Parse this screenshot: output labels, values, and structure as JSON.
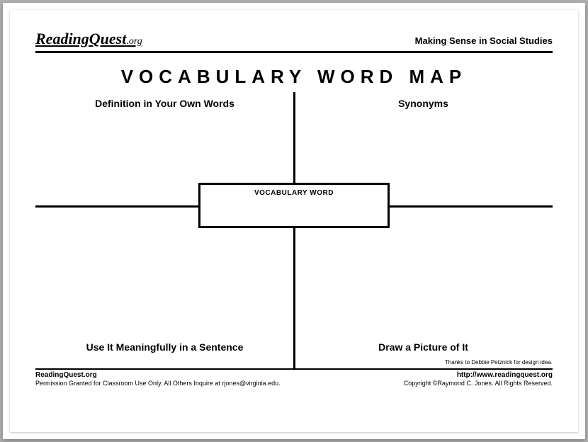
{
  "header": {
    "brand_main": "ReadingQuest",
    "brand_tld": ".org",
    "tagline": "Making Sense in Social Studies"
  },
  "title": "VOCABULARY WORD MAP",
  "diagram": {
    "center_label": "VOCABULARY WORD",
    "top_left": "Definition in Your Own Words",
    "top_right": "Synonyms",
    "bottom_left": "Use It Meaningfully in a Sentence",
    "bottom_right": "Draw a Picture of It",
    "credit": "Thanks to Debbie Petznick for design idea."
  },
  "footer": {
    "left_bold": "ReadingQuest.org",
    "right_bold": "http://www.readingquest.org",
    "left_small": "Permission Granted for Classroom Use Only. All Others Inquire at rjones@virginia.edu.",
    "right_small": "Copyright ©Raymond C. Jones. All Rights Reserved."
  },
  "colors": {
    "page_bg": "#ffffff",
    "chrome_bg": "#b0b0b0",
    "line": "#000000"
  }
}
